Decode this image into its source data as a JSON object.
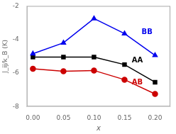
{
  "chart_data": {
    "type": "line",
    "x": [
      0.0,
      0.05,
      0.1,
      0.15,
      0.2
    ],
    "series": [
      {
        "name": "BB",
        "color": "#0000ee",
        "marker": "triangle",
        "values": [
          -4.85,
          -4.2,
          -2.75,
          -3.65,
          -4.95
        ]
      },
      {
        "name": "AA",
        "color": "#000000",
        "marker": "square",
        "values": [
          -5.05,
          -5.05,
          -5.05,
          -5.5,
          -6.55
        ]
      },
      {
        "name": "AB",
        "color": "#cc0000",
        "marker": "circle",
        "values": [
          -5.75,
          -5.9,
          -5.85,
          -6.4,
          -7.25
        ]
      }
    ],
    "xlabel": "x",
    "ylabel": "J_ij/k_B (K)",
    "xlim": [
      -0.01,
      0.225
    ],
    "ylim": [
      -8,
      -2
    ],
    "xticks": [
      {
        "value": 0.0,
        "label": "0.00"
      },
      0.05,
      {
        "value": 0.1,
        "label": "0.10"
      },
      0.15,
      {
        "value": 0.2,
        "label": "0.20"
      }
    ],
    "yticks": [
      -8,
      -6,
      -4,
      -2
    ],
    "grid": false,
    "annotations": [
      {
        "text": "BB",
        "x": 0.178,
        "y": -3.55,
        "color": "#0000ee"
      },
      {
        "text": "AA",
        "x": 0.162,
        "y": -5.25,
        "color": "#000000"
      },
      {
        "text": "AB",
        "x": 0.162,
        "y": -6.55,
        "color": "#cc0000"
      }
    ]
  }
}
